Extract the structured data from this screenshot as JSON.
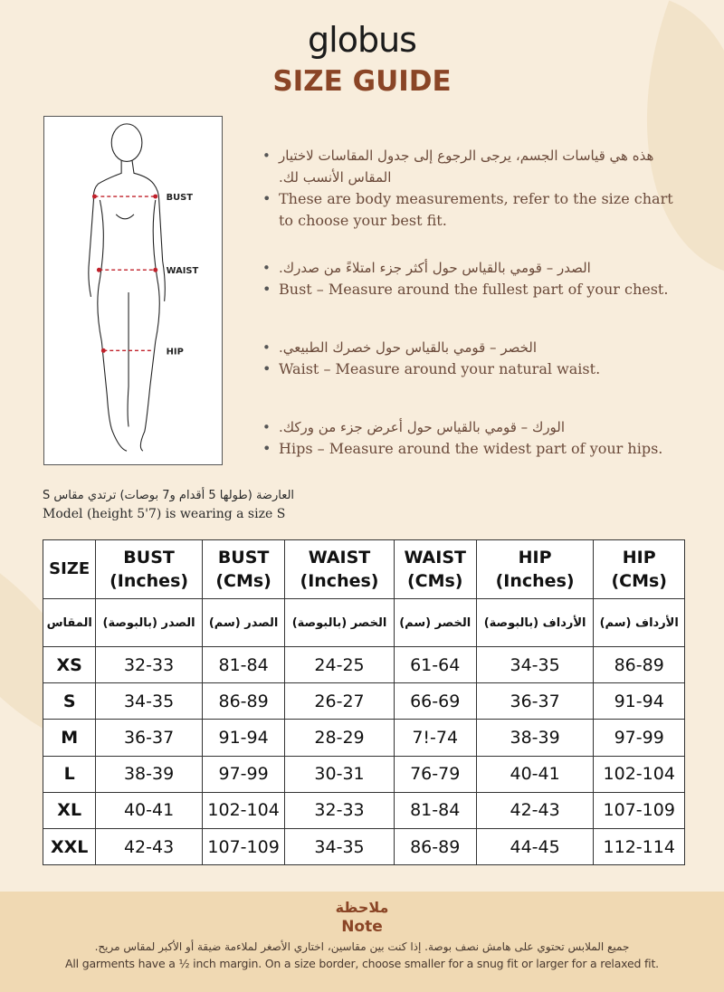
{
  "brand": "globus",
  "title": "SIZE GUIDE",
  "figure": {
    "labels": [
      "BUST",
      "WAIST",
      "HIP"
    ],
    "marker_color": "#c0202a"
  },
  "bullets": [
    {
      "ar": "هذه هي قياسات الجسم، يرجى الرجوع إلى جدول المقاسات لاختيار المقاس الأنسب لك.",
      "en": "These are body measurements, refer to the size chart to choose your best fit."
    },
    {
      "ar": "الصدر – قومي بالقياس حول أكثر جزء امتلاءً من صدرك.",
      "en": "Bust – Measure around the fullest part of your chest."
    },
    {
      "ar": "الخصر – قومي بالقياس حول خصرك الطبيعي.",
      "en": "Waist – Measure around your natural waist."
    },
    {
      "ar": "الورك – قومي بالقياس حول أعرض جزء من وركك.",
      "en": "Hips – Measure around the widest part of your hips."
    }
  ],
  "model": {
    "ar": "العارضة (طولها 5 أقدام و7 بوصات) ترتدي مقاس S",
    "en": "Model (height 5'7) is wearing a size S"
  },
  "table": {
    "headers": [
      [
        "SIZE",
        ""
      ],
      [
        "BUST",
        "(Inches)"
      ],
      [
        "BUST",
        "(CMs)"
      ],
      [
        "WAIST",
        "(Inches)"
      ],
      [
        "WAIST",
        "(CMs)"
      ],
      [
        "HIP",
        "(Inches)"
      ],
      [
        "HIP",
        "(CMs)"
      ]
    ],
    "arabic_headers": [
      "المقاس",
      "الصدر (بالبوصة)",
      "الصدر (سم)",
      "الخصر (بالبوصة)",
      "الخصر (سم)",
      "الأرداف (بالبوصة)",
      "الأرداف (سم)"
    ],
    "rows": [
      [
        "XS",
        "32-33",
        "81-84",
        "24-25",
        "61-64",
        "34-35",
        "86-89"
      ],
      [
        "S",
        "34-35",
        "86-89",
        "26-27",
        "66-69",
        "36-37",
        "91-94"
      ],
      [
        "M",
        "36-37",
        "91-94",
        "28-29",
        "7!-74",
        "38-39",
        "97-99"
      ],
      [
        "L",
        "38-39",
        "97-99",
        "30-31",
        "76-79",
        "40-41",
        "102-104"
      ],
      [
        "XL",
        "40-41",
        "102-104",
        "32-33",
        "81-84",
        "42-43",
        "107-109"
      ],
      [
        "XXL",
        "42-43",
        "107-109",
        "34-35",
        "86-89",
        "44-45",
        "112-114"
      ]
    ]
  },
  "note": {
    "title_ar": "ملاحظة",
    "title_en": "Note",
    "text_ar": "جميع الملابس تحتوي على هامش نصف بوصة. إذا كنت بين مقاسين، اختاري الأصغر لملاءمة ضيقة أو الأكبر لمقاس مريح.",
    "text_en": "All garments have a ½ inch margin. On a size border, choose smaller for a snug fit or larger for a relaxed fit."
  },
  "colors": {
    "background": "#f8eddc",
    "accent": "#8a4526",
    "note_band": "#f0d9b3"
  }
}
